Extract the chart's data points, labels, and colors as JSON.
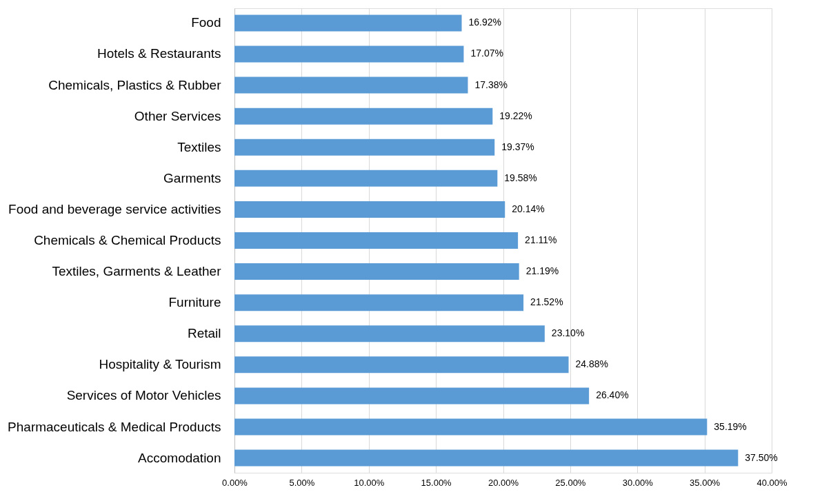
{
  "chart_data": {
    "type": "bar",
    "orientation": "horizontal",
    "categories": [
      "Food",
      "Hotels & Restaurants",
      "Chemicals, Plastics & Rubber",
      "Other Services",
      "Textiles",
      "Garments",
      "Food and beverage service activities",
      "Chemicals & Chemical Products",
      "Textiles, Garments & Leather",
      "Furniture",
      "Retail",
      "Hospitality & Tourism",
      "Services of Motor Vehicles",
      "Pharmaceuticals & Medical Products",
      "Accomodation"
    ],
    "values": [
      16.92,
      17.07,
      17.38,
      19.22,
      19.37,
      19.58,
      20.14,
      21.11,
      21.19,
      21.52,
      23.1,
      24.88,
      26.4,
      35.19,
      37.5
    ],
    "value_labels": [
      "16.92%",
      "17.07%",
      "17.38%",
      "19.22%",
      "19.37%",
      "19.58%",
      "20.14%",
      "21.11%",
      "21.19%",
      "21.52%",
      "23.10%",
      "24.88%",
      "26.40%",
      "35.19%",
      "37.50%"
    ],
    "color": "#5b9bd5",
    "xlim": [
      0,
      40
    ],
    "xticks": [
      {
        "value": 0,
        "label": "0.00%"
      },
      {
        "value": 5,
        "label": "5.00%"
      },
      {
        "value": 10,
        "label": "10.00%"
      },
      {
        "value": 15,
        "label": "15.00%"
      },
      {
        "value": 20,
        "label": "20.00%"
      },
      {
        "value": 25,
        "label": "25.00%"
      },
      {
        "value": 30,
        "label": "30.00%"
      },
      {
        "value": 35,
        "label": "35.00%"
      },
      {
        "value": 40,
        "label": "40.00%"
      }
    ],
    "grid": "x"
  }
}
